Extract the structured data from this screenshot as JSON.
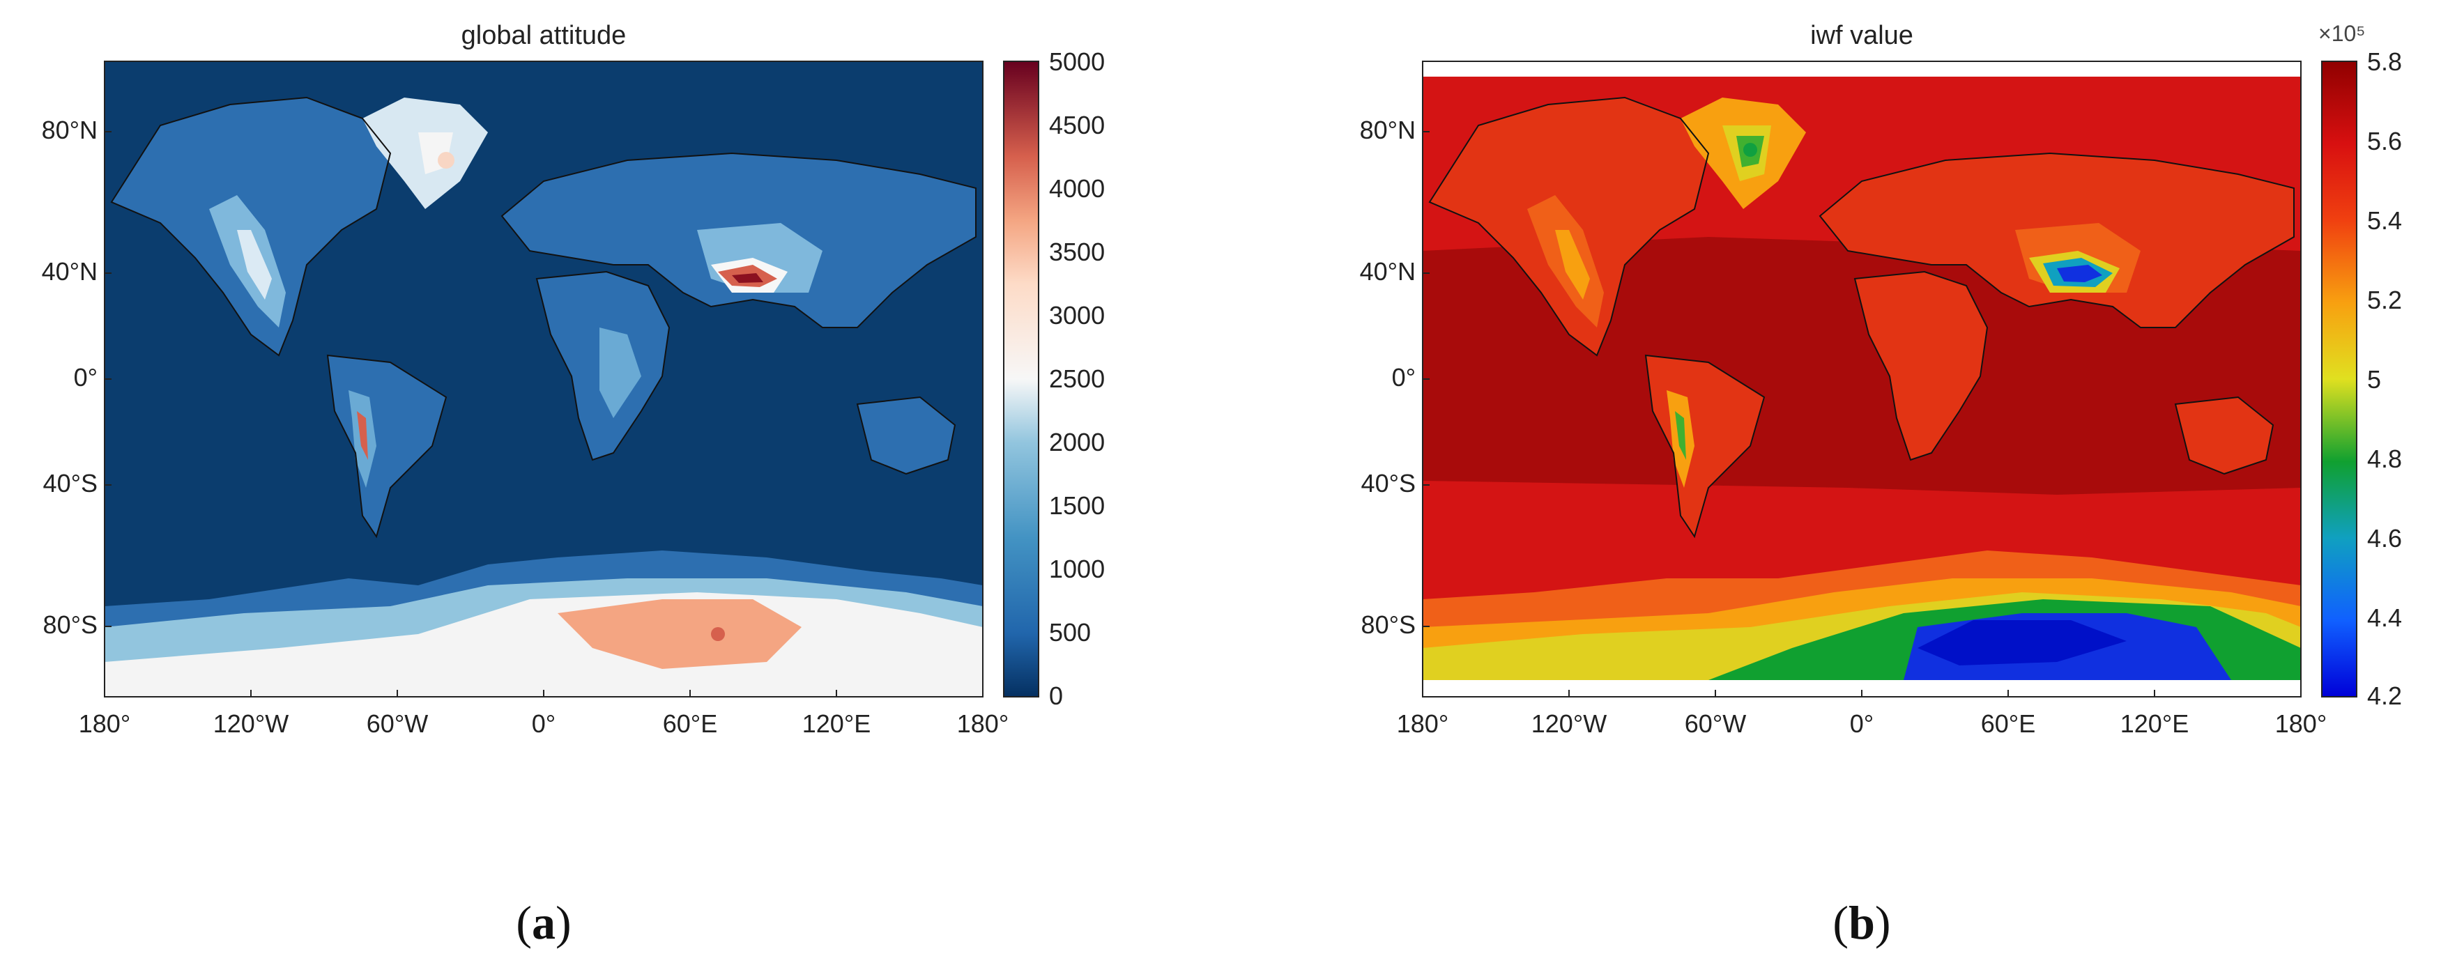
{
  "panels": [
    {
      "title": "global attitude",
      "caption_letter": "a",
      "y_ticks": [
        "80°N",
        "40°N",
        "0°",
        "40°S",
        "80°S"
      ],
      "x_ticks": [
        "180°",
        "120°W",
        "60°W",
        "0°",
        "60°E",
        "120°E",
        "180°"
      ],
      "colorbar": {
        "ticks": [
          "5000",
          "4500",
          "4000",
          "3500",
          "3000",
          "2500",
          "2000",
          "1500",
          "1000",
          "500",
          "0"
        ],
        "exponent": "",
        "colormap": "blue-white-red"
      },
      "field": "elevation",
      "colors": {
        "ocean": "#0b3d6e",
        "low": "#2166ac",
        "mid": "#92c5de",
        "high": "#f7f7f7",
        "peak": "#b2182b"
      }
    },
    {
      "title": "iwf value",
      "caption_letter": "b",
      "y_ticks": [
        "80°N",
        "40°N",
        "0°",
        "40°S",
        "80°S"
      ],
      "x_ticks": [
        "180°",
        "120°W",
        "60°W",
        "0°",
        "60°E",
        "120°E",
        "180°"
      ],
      "colorbar": {
        "ticks": [
          "5.8",
          "5.6",
          "5.4",
          "5.2",
          "5",
          "4.8",
          "4.6",
          "4.4",
          "4.2"
        ],
        "exponent": "×10⁵",
        "colormap": "jet"
      },
      "field": "iwf",
      "colors": {
        "background": "#d01212",
        "tropics": "#a00b0b",
        "land": "#e02a10"
      }
    }
  ]
}
